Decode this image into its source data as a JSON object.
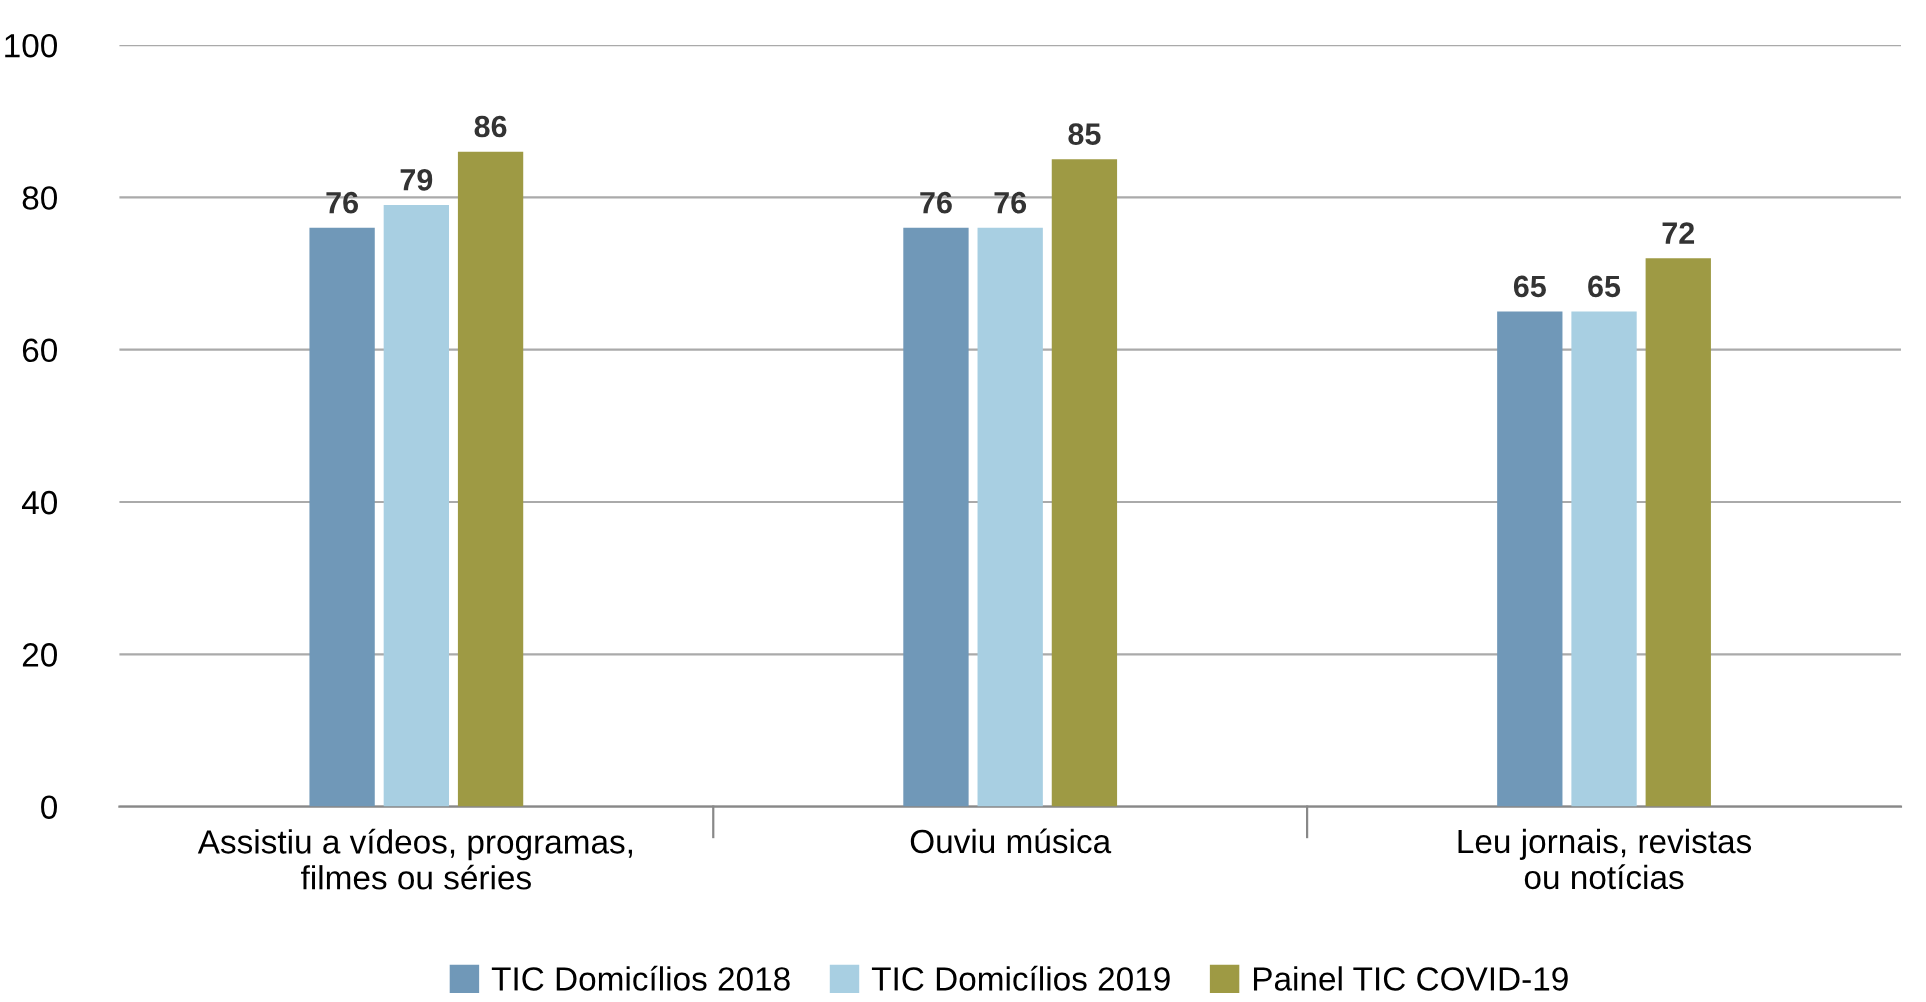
{
  "chart_data": {
    "type": "bar",
    "categories": [
      "Assistiu a vídeos, programas,\nfilmes ou séries",
      "Ouviu música",
      "Leu jornais, revistas\nou notícias"
    ],
    "series": [
      {
        "name": "TIC Domicílios 2018",
        "color": "#7098b8",
        "values": [
          76,
          76,
          65
        ]
      },
      {
        "name": "TIC Domicílios 2019",
        "color": "#a8cfe2",
        "values": [
          79,
          76,
          65
        ]
      },
      {
        "name": "Painel TIC COVID-19",
        "color": "#9e9a44",
        "values": [
          86,
          85,
          72
        ]
      }
    ],
    "ylim": [
      0,
      100
    ],
    "yticks": [
      0,
      20,
      40,
      60,
      80,
      100
    ],
    "grid": "y",
    "legend": "bottom",
    "data_labels": true
  }
}
